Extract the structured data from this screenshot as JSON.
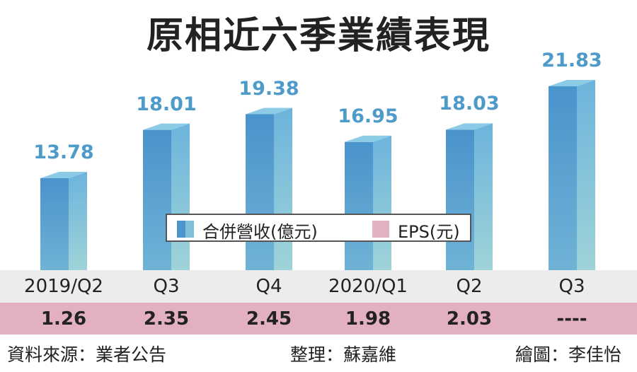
{
  "chart_data": {
    "type": "bar",
    "title": "原相近六季業績表現",
    "categories": [
      "2019/Q2",
      "Q3",
      "Q4",
      "2020/Q1",
      "Q2",
      "Q3"
    ],
    "series": [
      {
        "name": "合併營收(億元)",
        "values": [
          13.78,
          18.01,
          19.38,
          16.95,
          18.03,
          21.83
        ],
        "color": "#5aa6d4"
      },
      {
        "name": "EPS(元)",
        "values": [
          "1.26",
          "2.35",
          "2.45",
          "1.98",
          "2.03",
          "----"
        ],
        "color": "#e3b0bf"
      }
    ],
    "value_labels": [
      "13.78",
      "18.01",
      "19.38",
      "16.95",
      "18.03",
      "21.83"
    ],
    "legend": {
      "placement": "center",
      "items": [
        "合併營收(億元)",
        "EPS(元)"
      ]
    },
    "grid": false
  },
  "footer": {
    "source": "資料來源：業者公告",
    "editor": "整理：蘇嘉維",
    "illustrator": "繪圖：李佳怡"
  }
}
